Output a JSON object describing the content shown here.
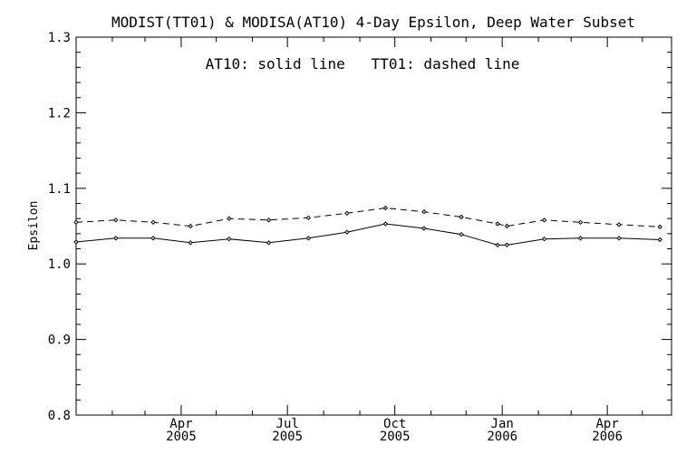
{
  "chart_data": {
    "type": "line",
    "title": "MODIST(TT01) & MODISA(AT10) 4-Day Epsilon, Deep Water Subset",
    "annotation": "AT10: solid line   TT01: dashed line",
    "ylabel": "Epsilon",
    "xlabel": "",
    "ylim": [
      0.8,
      1.3
    ],
    "xlim": [
      "2005-01-01",
      "2006-05-26"
    ],
    "y_ticks": [
      "0.8",
      "0.9",
      "1.0",
      "1.1",
      "1.2",
      "1.3"
    ],
    "x_ticks": [
      {
        "date": "2005-04-01",
        "month": "Apr",
        "year": "2005"
      },
      {
        "date": "2005-07-01",
        "month": "Jul",
        "year": "2005"
      },
      {
        "date": "2005-10-01",
        "month": "Oct",
        "year": "2005"
      },
      {
        "date": "2006-01-01",
        "month": "Jan",
        "year": "2006"
      },
      {
        "date": "2006-04-01",
        "month": "Apr",
        "year": "2006"
      }
    ],
    "grid": false,
    "series": [
      {
        "name": "AT10",
        "style": "solid",
        "points": [
          {
            "x": "2005-01-01",
            "y": 1.029
          },
          {
            "x": "2005-02-04",
            "y": 1.034
          },
          {
            "x": "2005-03-08",
            "y": 1.034
          },
          {
            "x": "2005-04-09",
            "y": 1.028
          },
          {
            "x": "2005-05-12",
            "y": 1.033
          },
          {
            "x": "2005-06-15",
            "y": 1.028
          },
          {
            "x": "2005-07-19",
            "y": 1.034
          },
          {
            "x": "2005-08-21",
            "y": 1.042
          },
          {
            "x": "2005-09-23",
            "y": 1.053
          },
          {
            "x": "2005-10-26",
            "y": 1.047
          },
          {
            "x": "2005-11-27",
            "y": 1.039
          },
          {
            "x": "2005-12-28",
            "y": 1.025
          },
          {
            "x": "2006-01-05",
            "y": 1.025
          },
          {
            "x": "2006-02-06",
            "y": 1.033
          },
          {
            "x": "2006-03-09",
            "y": 1.034
          },
          {
            "x": "2006-04-11",
            "y": 1.034
          },
          {
            "x": "2006-05-16",
            "y": 1.032
          }
        ]
      },
      {
        "name": "TT01",
        "style": "dashed",
        "points": [
          {
            "x": "2005-01-01",
            "y": 1.055
          },
          {
            "x": "2005-02-04",
            "y": 1.058
          },
          {
            "x": "2005-03-08",
            "y": 1.055
          },
          {
            "x": "2005-04-09",
            "y": 1.05
          },
          {
            "x": "2005-05-12",
            "y": 1.06
          },
          {
            "x": "2005-06-15",
            "y": 1.058
          },
          {
            "x": "2005-07-19",
            "y": 1.061
          },
          {
            "x": "2005-08-21",
            "y": 1.067
          },
          {
            "x": "2005-09-23",
            "y": 1.074
          },
          {
            "x": "2005-10-26",
            "y": 1.069
          },
          {
            "x": "2005-11-27",
            "y": 1.062
          },
          {
            "x": "2005-12-28",
            "y": 1.053
          },
          {
            "x": "2006-01-05",
            "y": 1.05
          },
          {
            "x": "2006-02-06",
            "y": 1.058
          },
          {
            "x": "2006-03-09",
            "y": 1.055
          },
          {
            "x": "2006-04-11",
            "y": 1.052
          },
          {
            "x": "2006-05-16",
            "y": 1.049
          }
        ]
      }
    ]
  }
}
